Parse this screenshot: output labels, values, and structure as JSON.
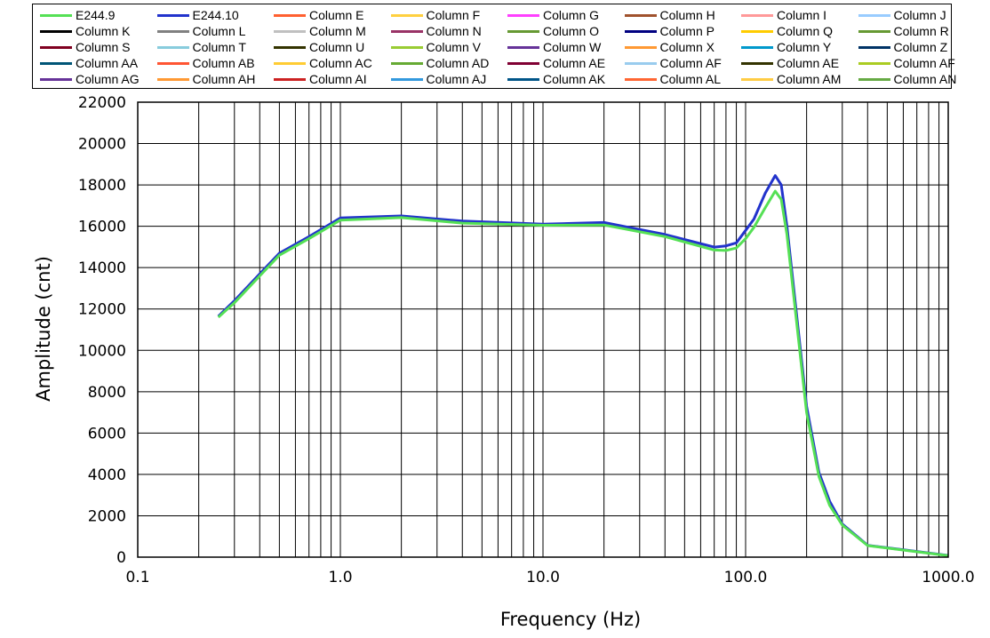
{
  "chart_data": {
    "type": "line",
    "title": "",
    "xlabel": "Frequency  (Hz)",
    "ylabel": "Amplitude  (cnt)",
    "x_scale": "log",
    "xlim": [
      0.1,
      1000
    ],
    "ylim": [
      0,
      22000
    ],
    "grid": true,
    "legend_position": "top",
    "x_tick_labels": [
      "0.1",
      "1.0",
      "10.0",
      "100.0",
      "1000.0"
    ],
    "y_tick_labels": [
      "0",
      "2000",
      "4000",
      "6000",
      "8000",
      "10000",
      "12000",
      "14000",
      "16000",
      "18000",
      "20000",
      "22000"
    ],
    "legend": [
      {
        "name": "E244.9",
        "color": "#55e055"
      },
      {
        "name": "E244.10",
        "color": "#2233cc"
      },
      {
        "name": "Column E",
        "color": "#ff6030"
      },
      {
        "name": "Column F",
        "color": "#ffd040"
      },
      {
        "name": "Column G",
        "color": "#ff40ff"
      },
      {
        "name": "Column H",
        "color": "#a0522d"
      },
      {
        "name": "Column I",
        "color": "#ff9999"
      },
      {
        "name": "Column J",
        "color": "#99ccff"
      },
      {
        "name": "Column K",
        "color": "#000000"
      },
      {
        "name": "Column L",
        "color": "#808080"
      },
      {
        "name": "Column M",
        "color": "#c0c0c0"
      },
      {
        "name": "Column N",
        "color": "#993366"
      },
      {
        "name": "Column O",
        "color": "#669933"
      },
      {
        "name": "Column P",
        "color": "#000080"
      },
      {
        "name": "Column Q",
        "color": "#ffcc00"
      },
      {
        "name": "Column R",
        "color": "#669933"
      },
      {
        "name": "Column S",
        "color": "#800020"
      },
      {
        "name": "Column T",
        "color": "#88ccdd"
      },
      {
        "name": "Column U",
        "color": "#333300"
      },
      {
        "name": "Column V",
        "color": "#99cc33"
      },
      {
        "name": "Column W",
        "color": "#663399"
      },
      {
        "name": "Column X",
        "color": "#ff9933"
      },
      {
        "name": "Column Y",
        "color": "#0099cc"
      },
      {
        "name": "Column Z",
        "color": "#003366"
      },
      {
        "name": "Column AA",
        "color": "#005577"
      },
      {
        "name": "Column AB",
        "color": "#ff5533"
      },
      {
        "name": "Column AC",
        "color": "#ffcc33"
      },
      {
        "name": "Column AD",
        "color": "#66aa33"
      },
      {
        "name": "Column AE",
        "color": "#800033"
      },
      {
        "name": "Column AF",
        "color": "#99ccee"
      },
      {
        "name": "Column AE",
        "color": "#333300"
      },
      {
        "name": "Column AF",
        "color": "#aacc22"
      },
      {
        "name": "Column AG",
        "color": "#663399"
      },
      {
        "name": "Column AH",
        "color": "#ff9933"
      },
      {
        "name": "Column AI",
        "color": "#cc2222"
      },
      {
        "name": "Column AJ",
        "color": "#3399dd"
      },
      {
        "name": "Column AK",
        "color": "#005588"
      },
      {
        "name": "Column AL",
        "color": "#ff6633"
      },
      {
        "name": "Column AM",
        "color": "#ffcc44"
      },
      {
        "name": "Column AN",
        "color": "#66aa44"
      }
    ],
    "series": [
      {
        "name": "E244.10",
        "color": "#2233cc",
        "x": [
          0.25,
          0.3,
          0.4,
          0.5,
          0.7,
          1.0,
          2.0,
          4.0,
          10.0,
          20.0,
          40.0,
          70.0,
          80.0,
          90.0,
          100.0,
          110.0,
          125.0,
          140.0,
          150.0,
          160.0,
          200.0,
          230.0,
          260.0,
          300.0,
          400.0,
          1000.0
        ],
        "y": [
          11650,
          12400,
          13700,
          14700,
          15500,
          16400,
          16500,
          16250,
          16100,
          16180,
          15600,
          14990,
          15050,
          15200,
          15800,
          16350,
          17600,
          18450,
          18000,
          16000,
          7300,
          4100,
          2700,
          1600,
          570,
          80
        ]
      },
      {
        "name": "E244.9",
        "color": "#55e055",
        "x": [
          0.25,
          0.3,
          0.4,
          0.5,
          0.7,
          1.0,
          2.0,
          4.0,
          10.0,
          20.0,
          40.0,
          70.0,
          80.0,
          90.0,
          100.0,
          110.0,
          125.0,
          140.0,
          150.0,
          160.0,
          200.0,
          230.0,
          260.0,
          300.0,
          400.0,
          1000.0
        ],
        "y": [
          11600,
          12300,
          13600,
          14600,
          15400,
          16300,
          16420,
          16150,
          16050,
          16060,
          15500,
          14850,
          14830,
          14950,
          15400,
          15950,
          16900,
          17700,
          17300,
          15600,
          7000,
          3900,
          2500,
          1550,
          560,
          70
        ]
      }
    ]
  }
}
